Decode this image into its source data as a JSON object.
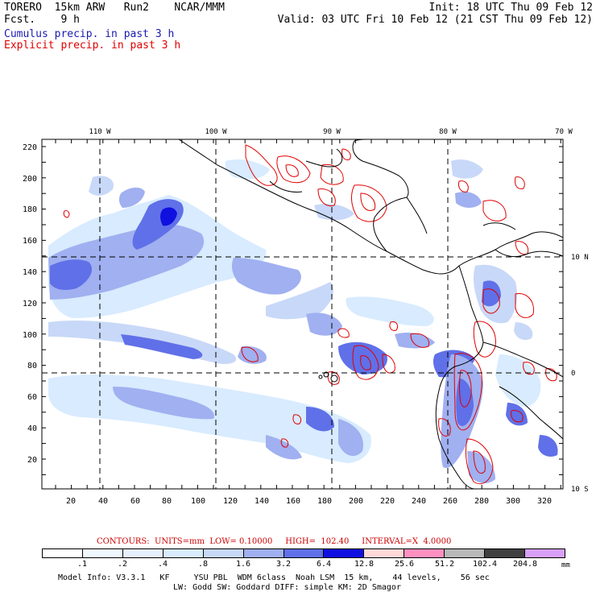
{
  "header": {
    "model_line": "TORERO  15km ARW   Run2    NCAR/MMM",
    "fcst_line": "Fcst.    9 h",
    "init_line": "Init: 18 UTC Thu 09 Feb 12",
    "valid_line": "Valid: 03 UTC Fri 10 Feb 12 (21 CST Thu 09 Feb 12)",
    "legend_cumulus": "Cumulus precip. in past 3 h",
    "legend_explicit": "Explicit precip. in past 3 h",
    "legend_cumulus_color": "#1a1ab0",
    "legend_explicit_color": "#e00000"
  },
  "map": {
    "lon_labels": [
      "110 W",
      "100 W",
      "90 W",
      "80 W",
      "70 W"
    ],
    "lat_labels": [
      "10 N",
      "0",
      "10 S"
    ],
    "y_ticks": [
      "220",
      "200",
      "180",
      "160",
      "140",
      "120",
      "100",
      "80",
      "60",
      "40",
      "20"
    ],
    "x_ticks": [
      "20",
      "40",
      "60",
      "80",
      "100",
      "120",
      "140",
      "160",
      "180",
      "200",
      "220",
      "240",
      "260",
      "280",
      "300",
      "320"
    ]
  },
  "contours": {
    "text": "CONTOURS:  UNITS=mm  LOW= 0.10000     HIGH=  102.40     INTERVAL=X  4.0000",
    "color": "#cc0000"
  },
  "colorbar": {
    "labels": [
      ".1",
      ".2",
      ".4",
      ".8",
      "1.6",
      "3.2",
      "6.4",
      "12.8",
      "25.6",
      "51.2",
      "102.4",
      "204.8"
    ],
    "units": "mm",
    "colors": [
      "#ffffff",
      "#f0f8ff",
      "#e6f0ff",
      "#d8ebff",
      "#c8d8f8",
      "#a0b0f0",
      "#6070e8",
      "#1010e0",
      "#ffd8d8",
      "#ff90c0",
      "#b8b8b8",
      "#404040",
      "#d8a0f8"
    ]
  },
  "footer": {
    "line1": "Model Info: V3.3.1   KF     YSU PBL  WDM 6class  Noah LSM  15 km,    44 levels,    56 sec",
    "line2": "LW: Godd SW: Goddard DIFF: simple KM: 2D Smagor"
  }
}
